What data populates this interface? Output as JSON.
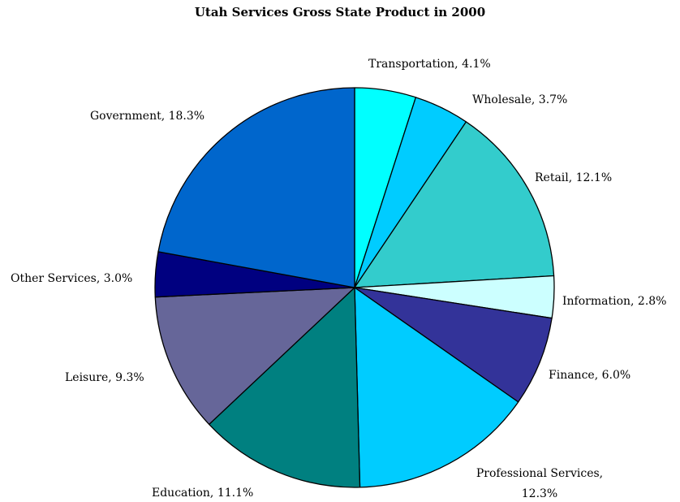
{
  "chart_data": {
    "type": "pie",
    "title": "Utah Services Gross State Product in 2000",
    "slices": [
      {
        "name": "Transportation",
        "label": "Transportation, 4.1%",
        "value": 4.1,
        "color": "#00FFFF"
      },
      {
        "name": "Wholesale",
        "label": "Wholesale, 3.7%",
        "value": 3.7,
        "color": "#00CCFF"
      },
      {
        "name": "Retail",
        "label": "Retail, 12.1%",
        "value": 12.1,
        "color": "#33CCCC"
      },
      {
        "name": "Information",
        "label": "Information, 2.8%",
        "value": 2.8,
        "color": "#CCFFFF"
      },
      {
        "name": "Finance",
        "label": "Finance, 6.0%",
        "value": 6.0,
        "color": "#333399"
      },
      {
        "name": "Professional Services",
        "label": "Professional Services,|12.3%",
        "value": 12.3,
        "color": "#00CCFF"
      },
      {
        "name": "Education",
        "label": "Education, 11.1%",
        "value": 11.1,
        "color": "#008080"
      },
      {
        "name": "Leisure",
        "label": "Leisure, 9.3%",
        "value": 9.3,
        "color": "#666699"
      },
      {
        "name": "Other Services",
        "label": "Other Services, 3.0%",
        "value": 3.0,
        "color": "#000080"
      },
      {
        "name": "Government",
        "label": "Government, 18.3%",
        "value": 18.3,
        "color": "#0066CC"
      }
    ],
    "start_angle_deg": 0,
    "direction": "clockwise",
    "legend": "none"
  }
}
